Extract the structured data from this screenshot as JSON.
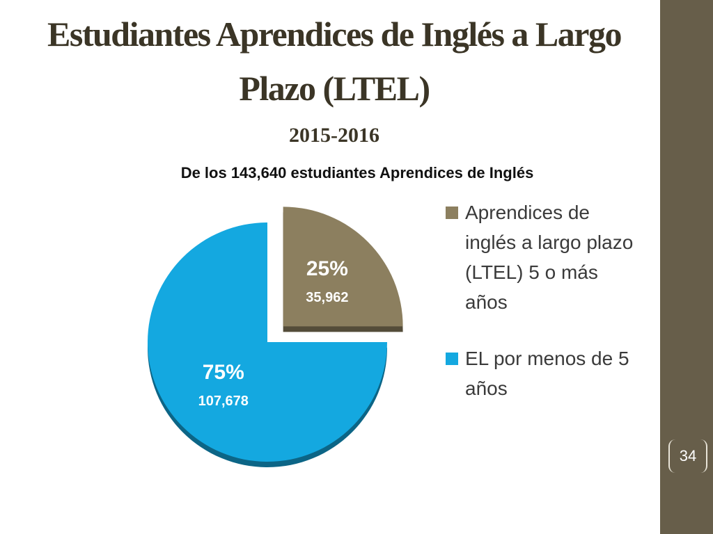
{
  "chart_data": {
    "type": "pie",
    "title": "Estudiantes Aprendices  de Inglés a Largo Plazo (LTEL)",
    "subtitle": "2015-2016",
    "caption": "De los 143,640 estudiantes Aprendices de Inglés",
    "categories": [
      "Aprendices de inglés a largo plazo (LTEL) 5 o más años",
      "EL por menos de 5 años"
    ],
    "values": [
      25,
      75
    ],
    "value_labels": [
      "25%",
      "75%"
    ],
    "counts": [
      35962,
      107678
    ],
    "count_labels": [
      "35,962",
      "107,678"
    ],
    "colors": [
      "#8c7f5f",
      "#14a8e0"
    ],
    "page_number": "34"
  }
}
